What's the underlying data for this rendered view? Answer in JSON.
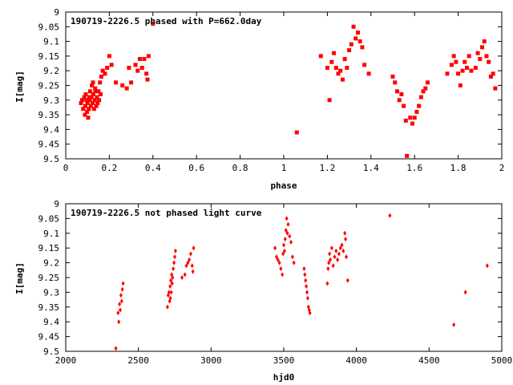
{
  "colors": {
    "data": "#ff0000",
    "axes": "#000000",
    "background": "#ffffff"
  },
  "chart_data": [
    {
      "type": "scatter",
      "title": "190719-2226.5 phased with P=662.0day",
      "xlabel": "phase",
      "ylabel": "I[mag]",
      "xlim": [
        0,
        2
      ],
      "ylim": [
        9.5,
        9.0
      ],
      "y_inverted": true,
      "grid": false,
      "legend": "none",
      "marker": "filled-square",
      "xticks": [
        "0",
        "0.2",
        "0.4",
        "0.6",
        "0.8",
        "1",
        "1.2",
        "1.4",
        "1.6",
        "1.8",
        "2"
      ],
      "yticks": [
        "9",
        "9.05",
        "9.1",
        "9.15",
        "9.2",
        "9.25",
        "9.3",
        "9.35",
        "9.4",
        "9.45",
        "9.5"
      ],
      "points": [
        [
          0.07,
          9.31
        ],
        [
          0.075,
          9.3
        ],
        [
          0.08,
          9.33
        ],
        [
          0.085,
          9.29
        ],
        [
          0.088,
          9.35
        ],
        [
          0.09,
          9.32
        ],
        [
          0.095,
          9.3
        ],
        [
          0.098,
          9.34
        ],
        [
          0.1,
          9.31
        ],
        [
          0.103,
          9.36
        ],
        [
          0.106,
          9.33
        ],
        [
          0.11,
          9.3
        ],
        [
          0.112,
          9.27
        ],
        [
          0.115,
          9.32
        ],
        [
          0.118,
          9.29
        ],
        [
          0.12,
          9.25
        ],
        [
          0.123,
          9.31
        ],
        [
          0.126,
          9.28
        ],
        [
          0.13,
          9.33
        ],
        [
          0.133,
          9.3
        ],
        [
          0.136,
          9.27
        ],
        [
          0.14,
          9.32
        ],
        [
          0.143,
          9.29
        ],
        [
          0.146,
          9.31
        ],
        [
          0.15,
          9.27
        ],
        [
          0.153,
          9.3
        ],
        [
          0.157,
          9.24
        ],
        [
          0.16,
          9.28
        ],
        [
          0.125,
          9.24
        ],
        [
          0.135,
          9.26
        ],
        [
          0.108,
          9.29
        ],
        [
          0.092,
          9.28
        ],
        [
          0.163,
          9.22
        ],
        [
          0.17,
          9.2
        ],
        [
          0.18,
          9.21
        ],
        [
          0.19,
          9.19
        ],
        [
          0.2,
          9.15
        ],
        [
          0.21,
          9.18
        ],
        [
          0.23,
          9.24
        ],
        [
          0.26,
          9.25
        ],
        [
          0.28,
          9.26
        ],
        [
          0.29,
          9.19
        ],
        [
          0.3,
          9.24
        ],
        [
          0.32,
          9.18
        ],
        [
          0.33,
          9.2
        ],
        [
          0.34,
          9.16
        ],
        [
          0.35,
          9.19
        ],
        [
          0.36,
          9.16
        ],
        [
          0.37,
          9.21
        ],
        [
          0.375,
          9.23
        ],
        [
          0.38,
          9.15
        ],
        [
          0.4,
          9.04
        ],
        [
          1.06,
          9.41
        ],
        [
          1.17,
          9.15
        ],
        [
          1.2,
          9.19
        ],
        [
          1.21,
          9.3
        ],
        [
          1.22,
          9.17
        ],
        [
          1.23,
          9.14
        ],
        [
          1.24,
          9.19
        ],
        [
          1.25,
          9.21
        ],
        [
          1.26,
          9.2
        ],
        [
          1.27,
          9.23
        ],
        [
          1.28,
          9.16
        ],
        [
          1.29,
          9.19
        ],
        [
          1.3,
          9.13
        ],
        [
          1.31,
          9.11
        ],
        [
          1.32,
          9.05
        ],
        [
          1.33,
          9.09
        ],
        [
          1.34,
          9.07
        ],
        [
          1.35,
          9.1
        ],
        [
          1.36,
          9.12
        ],
        [
          1.37,
          9.18
        ],
        [
          1.39,
          9.21
        ],
        [
          1.5,
          9.22
        ],
        [
          1.51,
          9.24
        ],
        [
          1.52,
          9.27
        ],
        [
          1.53,
          9.3
        ],
        [
          1.54,
          9.28
        ],
        [
          1.55,
          9.32
        ],
        [
          1.56,
          9.37
        ],
        [
          1.565,
          9.49
        ],
        [
          1.58,
          9.36
        ],
        [
          1.59,
          9.38
        ],
        [
          1.6,
          9.36
        ],
        [
          1.61,
          9.34
        ],
        [
          1.62,
          9.32
        ],
        [
          1.63,
          9.29
        ],
        [
          1.64,
          9.27
        ],
        [
          1.65,
          9.26
        ],
        [
          1.66,
          9.24
        ],
        [
          1.75,
          9.21
        ],
        [
          1.77,
          9.18
        ],
        [
          1.78,
          9.15
        ],
        [
          1.79,
          9.17
        ],
        [
          1.8,
          9.21
        ],
        [
          1.81,
          9.25
        ],
        [
          1.82,
          9.2
        ],
        [
          1.83,
          9.17
        ],
        [
          1.84,
          9.19
        ],
        [
          1.85,
          9.15
        ],
        [
          1.86,
          9.2
        ],
        [
          1.88,
          9.19
        ],
        [
          1.89,
          9.14
        ],
        [
          1.9,
          9.16
        ],
        [
          1.91,
          9.12
        ],
        [
          1.92,
          9.1
        ],
        [
          1.93,
          9.15
        ],
        [
          1.94,
          9.17
        ],
        [
          1.95,
          9.22
        ],
        [
          1.96,
          9.21
        ],
        [
          1.97,
          9.26
        ]
      ]
    },
    {
      "type": "scatter",
      "title": "190719-2226.5 not phased light curve",
      "xlabel": "hjd0",
      "ylabel": "I[mag]",
      "xlim": [
        2000,
        5000
      ],
      "ylim": [
        9.5,
        9.0
      ],
      "y_inverted": true,
      "grid": false,
      "legend": "none",
      "marker": "filled-diamond",
      "xticks": [
        "2000",
        "2500",
        "3000",
        "3500",
        "4000",
        "4500",
        "5000"
      ],
      "yticks": [
        "9",
        "9.05",
        "9.1",
        "9.15",
        "9.2",
        "9.25",
        "9.3",
        "9.35",
        "9.4",
        "9.45",
        "9.5"
      ],
      "points": [
        [
          2345,
          9.49
        ],
        [
          2360,
          9.37
        ],
        [
          2365,
          9.4
        ],
        [
          2370,
          9.34
        ],
        [
          2375,
          9.36
        ],
        [
          2380,
          9.31
        ],
        [
          2385,
          9.33
        ],
        [
          2390,
          9.29
        ],
        [
          2395,
          9.27
        ],
        [
          2700,
          9.35
        ],
        [
          2705,
          9.31
        ],
        [
          2710,
          9.3
        ],
        [
          2715,
          9.33
        ],
        [
          2718,
          9.28
        ],
        [
          2720,
          9.32
        ],
        [
          2723,
          9.26
        ],
        [
          2726,
          9.3
        ],
        [
          2729,
          9.24
        ],
        [
          2732,
          9.27
        ],
        [
          2735,
          9.25
        ],
        [
          2740,
          9.22
        ],
        [
          2745,
          9.2
        ],
        [
          2750,
          9.18
        ],
        [
          2755,
          9.16
        ],
        [
          2800,
          9.25
        ],
        [
          2820,
          9.24
        ],
        [
          2830,
          9.21
        ],
        [
          2840,
          9.2
        ],
        [
          2850,
          9.19
        ],
        [
          2860,
          9.17
        ],
        [
          2870,
          9.21
        ],
        [
          2875,
          9.23
        ],
        [
          2880,
          9.15
        ],
        [
          3440,
          9.15
        ],
        [
          3450,
          9.18
        ],
        [
          3460,
          9.19
        ],
        [
          3470,
          9.2
        ],
        [
          3480,
          9.22
        ],
        [
          3490,
          9.24
        ],
        [
          3495,
          9.17
        ],
        [
          3500,
          9.14
        ],
        [
          3505,
          9.16
        ],
        [
          3510,
          9.12
        ],
        [
          3515,
          9.09
        ],
        [
          3520,
          9.05
        ],
        [
          3525,
          9.1
        ],
        [
          3530,
          9.07
        ],
        [
          3540,
          9.11
        ],
        [
          3550,
          9.13
        ],
        [
          3560,
          9.18
        ],
        [
          3570,
          9.2
        ],
        [
          3640,
          9.22
        ],
        [
          3645,
          9.24
        ],
        [
          3650,
          9.26
        ],
        [
          3655,
          9.28
        ],
        [
          3660,
          9.3
        ],
        [
          3665,
          9.32
        ],
        [
          3670,
          9.35
        ],
        [
          3675,
          9.36
        ],
        [
          3680,
          9.37
        ],
        [
          3800,
          9.27
        ],
        [
          3805,
          9.22
        ],
        [
          3810,
          9.2
        ],
        [
          3815,
          9.17
        ],
        [
          3820,
          9.19
        ],
        [
          3830,
          9.15
        ],
        [
          3840,
          9.21
        ],
        [
          3850,
          9.18
        ],
        [
          3860,
          9.16
        ],
        [
          3870,
          9.19
        ],
        [
          3880,
          9.17
        ],
        [
          3890,
          9.15
        ],
        [
          3900,
          9.14
        ],
        [
          3910,
          9.16
        ],
        [
          3920,
          9.1
        ],
        [
          3925,
          9.12
        ],
        [
          3930,
          9.18
        ],
        [
          3940,
          9.26
        ],
        [
          4230,
          9.04
        ],
        [
          4670,
          9.41
        ],
        [
          4750,
          9.3
        ],
        [
          4900,
          9.21
        ]
      ]
    }
  ]
}
